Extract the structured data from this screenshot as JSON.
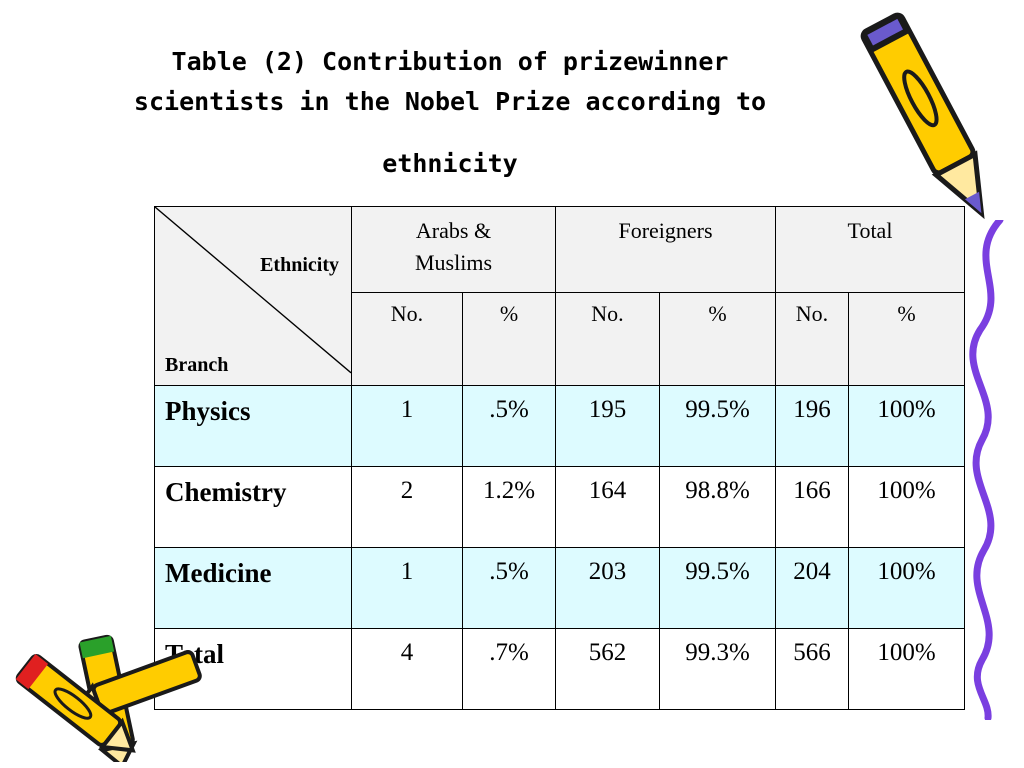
{
  "title": {
    "line1": "Table (2) Contribution of prizewinner",
    "line2": "scientists in the Nobel Prize according to",
    "line3": "ethnicity"
  },
  "table": {
    "corner_top": "Ethnicity",
    "corner_bottom": "Branch",
    "groups": [
      "Arabs & Muslims",
      "Foreigners",
      "Total"
    ],
    "group_lines": [
      [
        "Arabs &",
        "Muslims"
      ],
      [
        "Foreigners"
      ],
      [
        "Total"
      ]
    ],
    "subheaders": [
      "No.",
      "%",
      "No.",
      "%",
      "No.",
      "%"
    ],
    "rows": [
      {
        "label": "Physics",
        "cells": [
          "1",
          ".5%",
          "195",
          "99.5%",
          "196",
          "100%"
        ]
      },
      {
        "label": "Chemistry",
        "cells": [
          "2",
          "1.2%",
          "164",
          "98.8%",
          "166",
          "100%"
        ]
      },
      {
        "label": "Medicine",
        "cells": [
          "1",
          ".5%",
          "203",
          "99.5%",
          "204",
          "100%"
        ]
      },
      {
        "label": "Total",
        "cells": [
          "4",
          ".7%",
          "562",
          "99.3%",
          "566",
          "100%"
        ]
      }
    ]
  },
  "colors": {
    "tint_row": "#ddfbff",
    "header_bg": "#f2f2f2",
    "pencil_yellow": "#ffcc00",
    "pencil_outline": "#1a1a1a",
    "squiggle": "#7a3fe0"
  },
  "decorations": [
    "pencil-icon",
    "pencil-icon",
    "pencil-icon",
    "squiggle-line-icon"
  ]
}
